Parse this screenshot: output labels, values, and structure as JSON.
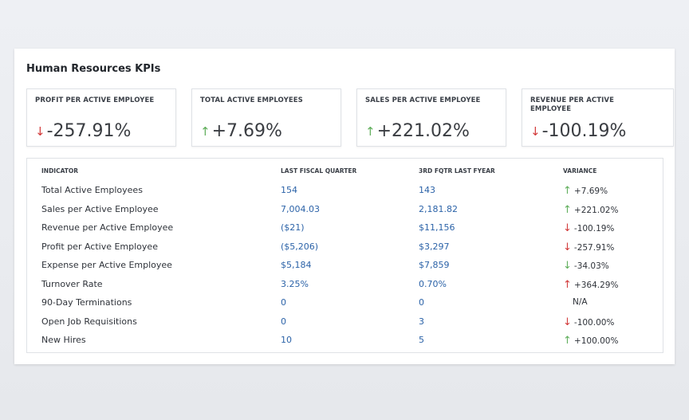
{
  "title": "Human Resources KPIs",
  "kpis": [
    {
      "label": "PROFIT PER ACTIVE EMPLOYEE",
      "value": "-257.91%",
      "direction": "down",
      "arrow": "↓"
    },
    {
      "label": "TOTAL ACTIVE EMPLOYEES",
      "value": "+7.69%",
      "direction": "up",
      "arrow": "↑"
    },
    {
      "label": "SALES PER ACTIVE EMPLOYEE",
      "value": "+221.02%",
      "direction": "up",
      "arrow": "↑"
    },
    {
      "label": "REVENUE PER ACTIVE EMPLOYEE",
      "value": "-100.19%",
      "direction": "down",
      "arrow": "↓"
    }
  ],
  "table": {
    "headers": {
      "indicator": "INDICATOR",
      "last": "LAST FISCAL QUARTER",
      "prev": "3RD FQTR LAST FYEAR",
      "variance": "VARIANCE"
    },
    "rows": [
      {
        "indicator": "Total Active Employees",
        "last": "154",
        "prev": "143",
        "variance": "+7.69%",
        "arrow": "↑",
        "color": "green"
      },
      {
        "indicator": "Sales per Active Employee",
        "last": "7,004.03",
        "prev": "2,181.82",
        "variance": "+221.02%",
        "arrow": "↑",
        "color": "green"
      },
      {
        "indicator": "Revenue per Active Employee",
        "last": "($21)",
        "prev": "$11,156",
        "variance": "-100.19%",
        "arrow": "↓",
        "color": "red"
      },
      {
        "indicator": "Profit per Active Employee",
        "last": "($5,206)",
        "prev": "$3,297",
        "variance": "-257.91%",
        "arrow": "↓",
        "color": "red"
      },
      {
        "indicator": "Expense per Active Employee",
        "last": "$5,184",
        "prev": "$7,859",
        "variance": "-34.03%",
        "arrow": "↓",
        "color": "green"
      },
      {
        "indicator": "Turnover Rate",
        "last": "3.25%",
        "prev": "0.70%",
        "variance": "+364.29%",
        "arrow": "↑",
        "color": "red"
      },
      {
        "indicator": "90-Day Terminations",
        "last": "0",
        "prev": "0",
        "variance": "N/A",
        "arrow": "",
        "color": "none"
      },
      {
        "indicator": "Open Job Requisitions",
        "last": "0",
        "prev": "3",
        "variance": "-100.00%",
        "arrow": "↓",
        "color": "red"
      },
      {
        "indicator": "New Hires",
        "last": "10",
        "prev": "5",
        "variance": "+100.00%",
        "arrow": "↑",
        "color": "green"
      }
    ]
  },
  "colors": {
    "green": "#5fae5a",
    "red": "#d23a3a",
    "link": "#2c63a8"
  }
}
